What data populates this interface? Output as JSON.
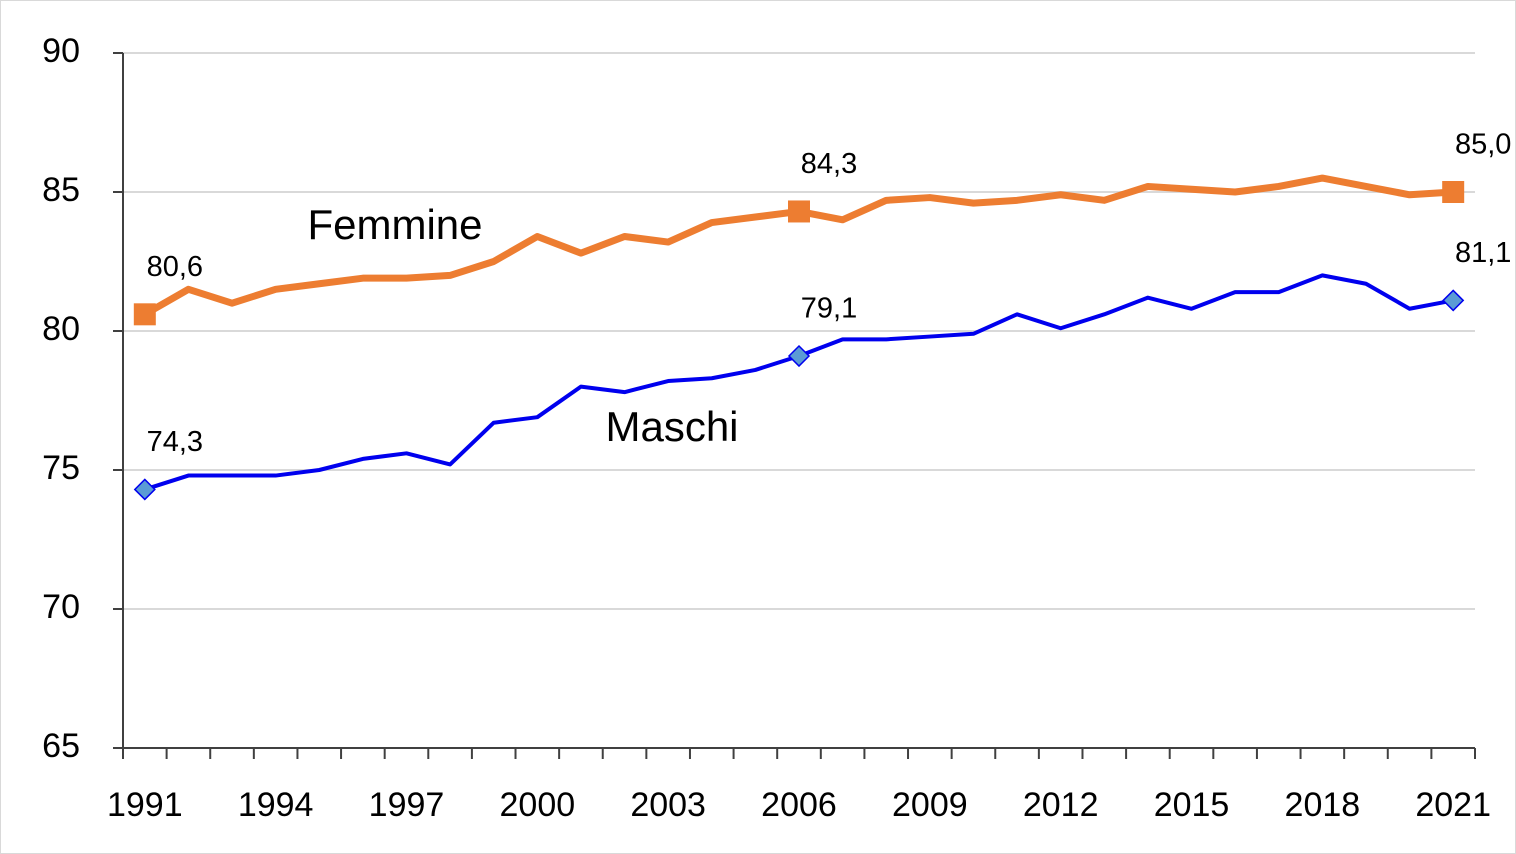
{
  "chart_data": {
    "type": "line",
    "categories": [
      "1991",
      null,
      null,
      "1994",
      null,
      null,
      "1997",
      null,
      null,
      "2000",
      null,
      null,
      "2003",
      null,
      null,
      "2006",
      null,
      null,
      "2009",
      null,
      null,
      "2012",
      null,
      null,
      "2015",
      null,
      null,
      "2018",
      null,
      null,
      "2021"
    ],
    "series": [
      {
        "name": "Femmine",
        "color": "#ed7d31",
        "marker": "square",
        "values": [
          80.6,
          81.5,
          81.0,
          81.5,
          81.7,
          81.9,
          81.9,
          82.0,
          82.5,
          83.4,
          82.8,
          83.4,
          83.2,
          83.9,
          84.1,
          84.3,
          84.0,
          84.7,
          84.8,
          84.6,
          84.7,
          84.9,
          84.7,
          85.2,
          85.1,
          85.0,
          85.2,
          85.5,
          85.2,
          84.9,
          85.0
        ],
        "value_labels": [
          "80,6",
          null,
          null,
          null,
          null,
          null,
          null,
          null,
          null,
          null,
          null,
          null,
          null,
          null,
          null,
          "84,3",
          null,
          null,
          null,
          null,
          null,
          null,
          null,
          null,
          null,
          null,
          null,
          null,
          null,
          null,
          "85,0"
        ]
      },
      {
        "name": "Maschi",
        "color": "#0000ee",
        "marker": "diamond",
        "marker_color": "#5b9bd5",
        "values": [
          74.3,
          74.8,
          74.8,
          74.8,
          75.0,
          75.4,
          75.6,
          75.2,
          76.7,
          76.9,
          78.0,
          77.8,
          78.2,
          78.3,
          78.6,
          79.1,
          79.7,
          79.7,
          79.8,
          79.9,
          80.6,
          80.1,
          80.6,
          81.2,
          80.8,
          81.4,
          81.4,
          82.0,
          81.7,
          80.8,
          81.1
        ],
        "value_labels": [
          "74,3",
          null,
          null,
          null,
          null,
          null,
          null,
          null,
          null,
          null,
          null,
          null,
          null,
          null,
          null,
          "79,1",
          null,
          null,
          null,
          null,
          null,
          null,
          null,
          null,
          null,
          null,
          null,
          null,
          null,
          null,
          "81,1"
        ]
      }
    ],
    "ylim": [
      65,
      90
    ],
    "yticks": [
      65,
      70,
      75,
      80,
      85,
      90
    ],
    "grid": true
  }
}
